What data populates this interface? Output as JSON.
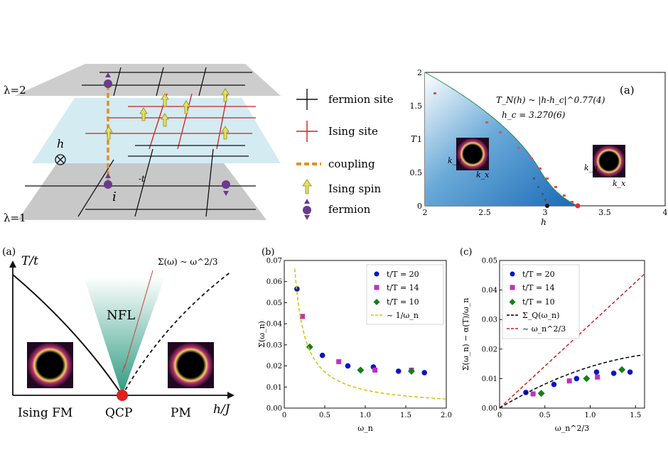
{
  "lattice": {
    "lambda_top": "λ=2",
    "lambda_bottom": "λ=1",
    "field_label": "h",
    "hop_label": "-t",
    "site_label": "i"
  },
  "legend": {
    "items": [
      {
        "label": "fermion site"
      },
      {
        "label": "Ising site"
      },
      {
        "label": "coupling"
      },
      {
        "label": "Ising spin"
      },
      {
        "label": "fermion"
      }
    ]
  },
  "phase_a": {
    "panel_label": "(a)",
    "formula_tn": "T_N(h) ~ |h-h_c|^0.77(4)",
    "formula_hc": "h_c = 3.270(6)",
    "xlabel": "h",
    "ylabel": "T",
    "xticks": [
      "2",
      "2.5",
      "3",
      "3.5",
      "4"
    ],
    "yticks": [
      "0",
      "0.5",
      "1",
      "1.5",
      "2"
    ],
    "kx": "k_x",
    "ky": "k_y"
  },
  "schematic": {
    "panel_label": "(a)",
    "y_axis": "T/t",
    "x_axis": "h/J",
    "nfl": "NFL",
    "sigma": "Σ(ω) ~ ω^2/3",
    "left_phase": "Ising FM",
    "qcp": "QCP",
    "right_phase": "PM"
  },
  "panel_b": {
    "panel_label": "(b)",
    "ylabel": "Σ(ω_n)",
    "xlabel": "ω_n",
    "legend": [
      "t/T  = 20",
      "t/T  = 14",
      "t/T  = 10",
      "~ 1/ω_n"
    ],
    "chart_data": {
      "type": "scatter",
      "xlim": [
        0,
        2.0
      ],
      "ylim": [
        0,
        0.07
      ],
      "xticks": [
        0,
        0.5,
        1.0,
        1.5,
        2.0
      ],
      "yticks": [
        0,
        0.01,
        0.02,
        0.03,
        0.04,
        0.05,
        0.06,
        0.07
      ],
      "series": [
        {
          "name": "t/T  = 20",
          "color": "#0a14c8",
          "marker": "circle",
          "x": [
            0.157,
            0.471,
            0.785,
            1.1,
            1.41,
            1.73
          ],
          "y": [
            0.0565,
            0.025,
            0.02,
            0.0195,
            0.0175,
            0.0168
          ]
        },
        {
          "name": "t/T  = 14",
          "color": "#c030c0",
          "marker": "square",
          "x": [
            0.224,
            0.673,
            1.12,
            1.57
          ],
          "y": [
            0.0435,
            0.022,
            0.018,
            0.018
          ]
        },
        {
          "name": "t/T  = 10",
          "color": "#158015",
          "marker": "diamond",
          "x": [
            0.314,
            0.942,
            1.57
          ],
          "y": [
            0.029,
            0.018,
            0.0175
          ]
        }
      ],
      "curve": {
        "name": "~ 1/ω_n",
        "color": "#c8c800",
        "style": "dashed",
        "coef": 0.0086
      }
    }
  },
  "panel_c": {
    "panel_label": "(c)",
    "ylabel": "Σ(ω_n) − α(T)/ω_n",
    "xlabel": "ω_n^2/3",
    "legend": [
      "t/T  = 20",
      "t/T  = 14",
      "t/T  = 10",
      "Σ_Q(ω_n)",
      "~ ω_n^2/3"
    ],
    "chart_data": {
      "type": "scatter",
      "xlim": [
        0,
        1.6
      ],
      "ylim": [
        0,
        0.05
      ],
      "xticks": [
        0,
        0.5,
        1.0,
        1.5
      ],
      "yticks": [
        0,
        0.01,
        0.02,
        0.03,
        0.04,
        0.05
      ],
      "series": [
        {
          "name": "t/T  = 20",
          "color": "#0a14c8",
          "marker": "circle",
          "x": [
            0.29,
            0.6,
            0.85,
            1.07,
            1.26,
            1.44
          ],
          "y": [
            0.0053,
            0.008,
            0.01,
            0.0122,
            0.0118,
            0.0122
          ]
        },
        {
          "name": "t/T  = 14",
          "color": "#c030c0",
          "marker": "square",
          "x": [
            0.37,
            0.77,
            1.08
          ],
          "y": [
            0.0048,
            0.0092,
            0.0105
          ]
        },
        {
          "name": "t/T  = 10",
          "color": "#158015",
          "marker": "diamond",
          "x": [
            0.46,
            0.96,
            1.35
          ],
          "y": [
            0.005,
            0.01,
            0.013
          ]
        }
      ],
      "sigma_q": {
        "name": "Σ_Q(ω_n)",
        "color": "#000000",
        "style": "dashed"
      },
      "line": {
        "name": "~ ω_n^2/3",
        "color": "#d02020",
        "style": "dashed",
        "slope": 0.0284
      }
    }
  }
}
